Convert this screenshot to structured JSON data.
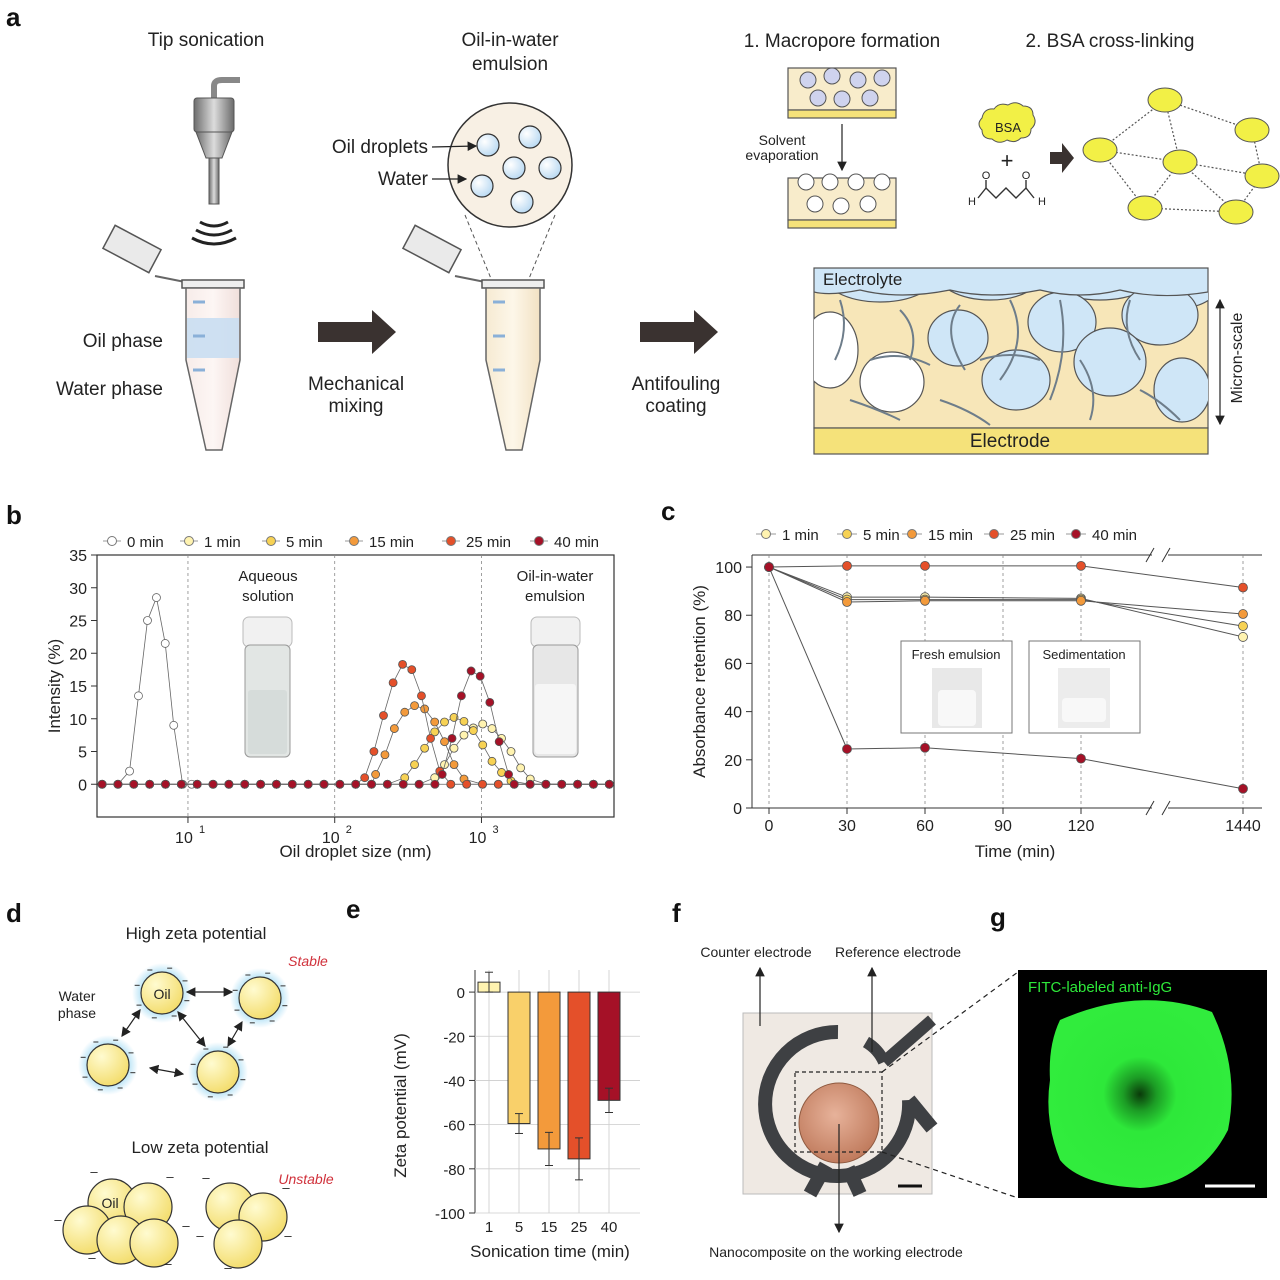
{
  "panels": {
    "a": {
      "label": "a",
      "tip_sonication": "Tip sonication",
      "oil_phase": "Oil phase",
      "water_phase": "Water phase",
      "emulsion_title": [
        "Oil-in-water",
        "emulsion"
      ],
      "oil_droplets": "Oil droplets",
      "water": "Water",
      "mechanical_mixing": [
        "Mechanical",
        "mixing"
      ],
      "antifouling_coating": [
        "Antifouling",
        "coating"
      ],
      "step1": "1. Macropore formation",
      "step2": "2. BSA cross-linking",
      "solvent_evaporation": [
        "Solvent",
        "evaporation"
      ],
      "bsa": "BSA",
      "plus": "+",
      "aldehyde_h": "H",
      "aldehyde_o": "O",
      "electrolyte": "Electrolyte",
      "electrode": "Electrode",
      "micron_scale": "Micron-scale"
    },
    "b": {
      "label": "b",
      "inset_left": [
        "Aqueous",
        "solution"
      ],
      "inset_right": [
        "Oil-in-water",
        "emulsion"
      ]
    },
    "c": {
      "label": "c",
      "inset_fresh": "Fresh emulsion",
      "inset_sed": "Sedimentation"
    },
    "d": {
      "label": "d",
      "high": "High zeta potential",
      "stable": "Stable",
      "water_phase": [
        "Water",
        "phase"
      ],
      "oil": "Oil",
      "low": "Low zeta potential",
      "unstable": "Unstable",
      "minus": "–"
    },
    "e": {
      "label": "e"
    },
    "f": {
      "label": "f",
      "counter": "Counter electrode",
      "reference": "Reference electrode",
      "working": "Nanocomposite on the working electrode"
    },
    "g": {
      "label": "g",
      "fitc": "FITC-labeled anti-IgG"
    }
  },
  "colors": {
    "0 min": "#ffffff",
    "1 min": "#fff3b0",
    "5 min": "#f7d254",
    "15 min": "#f39a3b",
    "25 min": "#e4502a",
    "40 min": "#a51127",
    "arrow": "#3a3230",
    "electrolyte": "#cfe6f7",
    "matrix": "#f7e6b8",
    "electrode": "#f5e27a",
    "bsa": "#f2f046",
    "fluor": "#2ee83a"
  },
  "chart_data": [
    {
      "panel": "b",
      "type": "line",
      "xscale": "log",
      "xlabel": "Oil droplet size (nm)",
      "ylabel": "Intensity (%)",
      "xlim": [
        2.4,
        8000
      ],
      "ylim": [
        -5,
        35
      ],
      "yticks": [
        0,
        5,
        10,
        15,
        20,
        25,
        30,
        35
      ],
      "xticks": [
        10,
        100,
        1000
      ],
      "xtick_labels": [
        "10",
        "10",
        "10"
      ],
      "xtick_exps": [
        "1",
        "2",
        "3"
      ],
      "legend": [
        "0 min",
        "1 min",
        "5 min",
        "15 min",
        "25 min",
        "40 min"
      ],
      "series": [
        {
          "name": "0 min",
          "x": [
            4.0,
            4.6,
            5.3,
            6.1,
            7.0,
            8.0,
            9.2,
            10.6
          ],
          "y": [
            2,
            13.5,
            25,
            28.5,
            21.5,
            9,
            0,
            0
          ]
        },
        {
          "name": "1 min",
          "x": [
            480,
            560,
            650,
            760,
            880,
            1020,
            1180,
            1370,
            1590,
            1850,
            2150
          ],
          "y": [
            1,
            3,
            5.5,
            7.5,
            8.6,
            9.2,
            8.5,
            7.0,
            5.0,
            2.5,
            0.8
          ]
        },
        {
          "name": "5 min",
          "x": [
            300,
            350,
            410,
            480,
            560,
            650,
            760,
            880,
            1020,
            1180,
            1370,
            1590
          ],
          "y": [
            1,
            3,
            5.5,
            8,
            9.5,
            10.2,
            9.6,
            8.2,
            6.0,
            3.5,
            1.8,
            0.5
          ]
        },
        {
          "name": "15 min",
          "x": [
            190,
            220,
            255,
            300,
            350,
            410,
            480,
            560,
            650,
            760
          ],
          "y": [
            1.5,
            4.5,
            8.5,
            11,
            12,
            11.5,
            9.5,
            6.5,
            3,
            0.8
          ]
        },
        {
          "name": "25 min",
          "x": [
            160,
            185,
            215,
            250,
            290,
            335,
            390,
            450,
            520
          ],
          "y": [
            1,
            5,
            10.5,
            15.5,
            18.3,
            17.5,
            13.5,
            7,
            2
          ]
        },
        {
          "name": "40 min",
          "x": [
            540,
            630,
            730,
            850,
            980,
            1140,
            1320,
            1530
          ],
          "y": [
            1.5,
            7,
            13.5,
            17.3,
            16.5,
            12.5,
            6.5,
            1.5
          ]
        }
      ]
    },
    {
      "panel": "c",
      "type": "line",
      "xlabel": "Time (min)",
      "ylabel": "Absorbance retention (%)",
      "ylim": [
        0,
        105
      ],
      "yticks": [
        0,
        20,
        40,
        60,
        80,
        100
      ],
      "x": [
        "0",
        "30",
        "60",
        "90",
        "120",
        "1440"
      ],
      "legend": [
        "1 min",
        "5 min",
        "15 min",
        "25 min",
        "40 min"
      ],
      "series": [
        {
          "name": "1 min",
          "x": [
            0,
            30,
            60,
            120,
            1440
          ],
          "y": [
            100,
            87.5,
            87.5,
            87,
            71
          ]
        },
        {
          "name": "5 min",
          "x": [
            0,
            30,
            60,
            120,
            1440
          ],
          "y": [
            100,
            86.5,
            86.5,
            86.5,
            75.5
          ]
        },
        {
          "name": "15 min",
          "x": [
            0,
            30,
            60,
            120,
            1440
          ],
          "y": [
            100,
            85.5,
            86,
            86,
            80.5
          ]
        },
        {
          "name": "25 min",
          "x": [
            0,
            30,
            60,
            120,
            1440
          ],
          "y": [
            100,
            100.5,
            100.5,
            100.5,
            91.5
          ]
        },
        {
          "name": "40 min",
          "x": [
            0,
            30,
            60,
            120,
            1440
          ],
          "y": [
            100,
            24.5,
            25,
            20.5,
            8
          ]
        }
      ]
    },
    {
      "panel": "e",
      "type": "bar",
      "xlabel": "Sonication time (min)",
      "ylabel": "Zeta potential (mV)",
      "categories": [
        "1",
        "5",
        "15",
        "25",
        "40"
      ],
      "values": [
        4.5,
        -59.5,
        -71,
        -75.5,
        -49
      ],
      "errors": [
        4.5,
        4.5,
        7.5,
        9.5,
        5.5
      ],
      "ylim": [
        -100,
        10
      ],
      "yticks": [
        0,
        -20,
        -40,
        -60,
        -80,
        -100
      ]
    }
  ]
}
